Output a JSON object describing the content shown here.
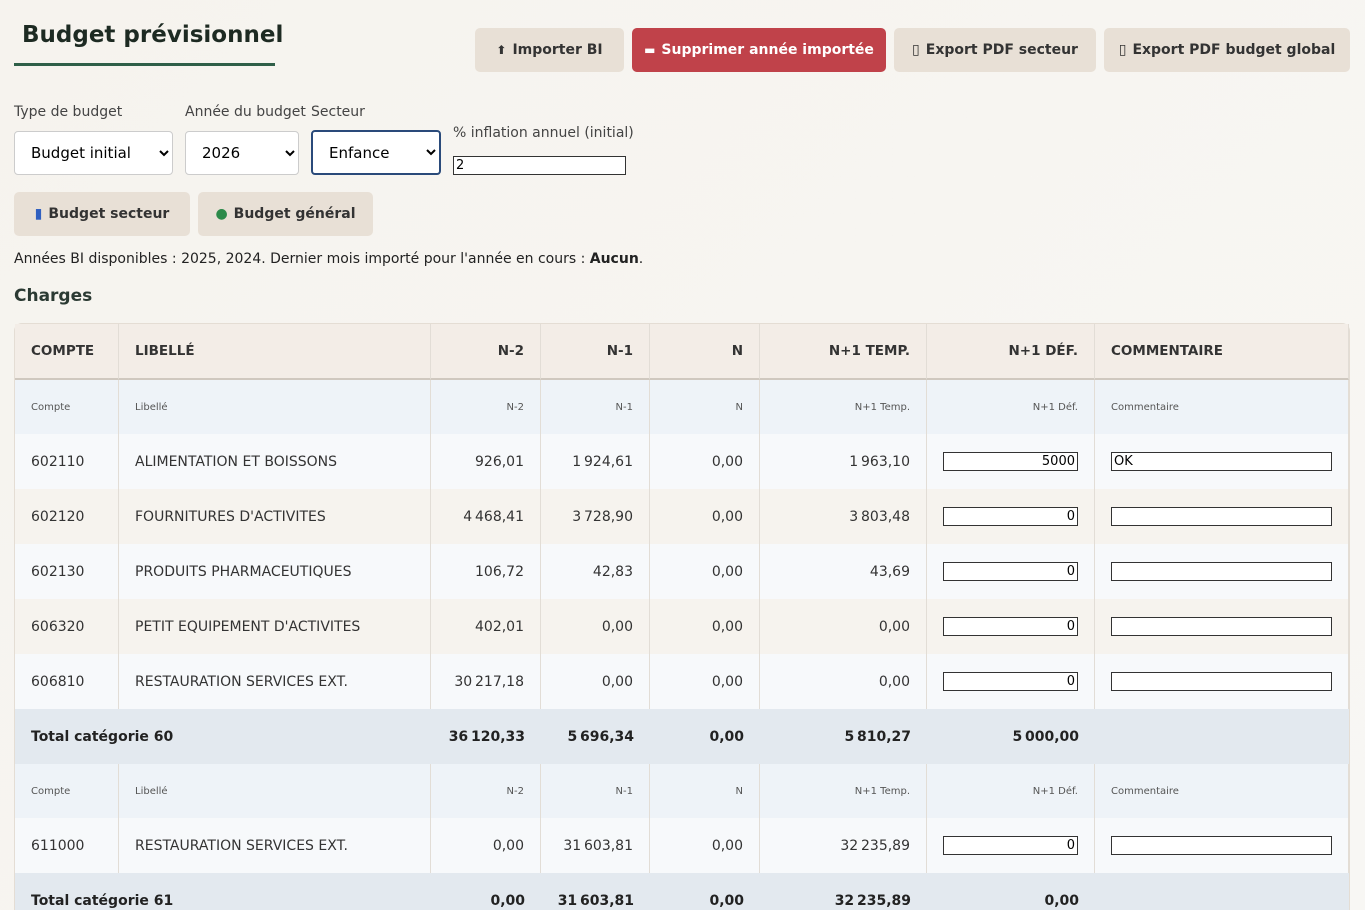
{
  "header": {
    "title": "Budget prévisionnel",
    "buttons": [
      "Importer BI",
      "Supprimer année importée",
      "Export PDF secteur",
      "Export PDF budget global"
    ]
  },
  "filters": [
    {
      "label": "Type de budget",
      "value": "Budget initial"
    },
    {
      "label": "Année du budget",
      "value": "2026"
    },
    {
      "label": "Secteur",
      "value": "Enfance"
    },
    {
      "label": "% inflation annuel (initial)",
      "value": "2"
    }
  ],
  "views": [
    "Budget secteur",
    "Budget général"
  ],
  "info": {
    "text": "Années BI disponibles : 2025, 2024. Dernier mois importé pour l'année en cours : ",
    "strong": "Aucun",
    "end": "."
  },
  "section": "Charges",
  "table": {
    "columns": [
      "COMPTE",
      "LIBELLÉ",
      "N-2",
      "N-1",
      "N",
      "N+1 TEMP.",
      "N+1 DÉF.",
      "COMMENTAIRE"
    ],
    "subheader": [
      "Compte",
      "Libellé",
      "N-2",
      "N-1",
      "N",
      "N+1 Temp.",
      "N+1 Déf.",
      "Commentaire"
    ],
    "groups": [
      {
        "rows": [
          {
            "compte": "602110",
            "libelle": "ALIMENTATION ET BOISSONS",
            "n2": "926,01",
            "n1": "1 924,61",
            "n": "0,00",
            "temp": "1 963,10",
            "def": "5000",
            "commentaire": "OK"
          },
          {
            "compte": "602120",
            "libelle": "FOURNITURES D'ACTIVITES",
            "n2": "4 468,41",
            "n1": "3 728,90",
            "n": "0,00",
            "temp": "3 803,48",
            "def": "0"
          },
          {
            "compte": "602130",
            "libelle": "PRODUITS PHARMACEUTIQUES",
            "n2": "106,72",
            "n1": "42,83",
            "n": "0,00",
            "temp": "43,69",
            "def": "0"
          },
          {
            "compte": "606320",
            "libelle": "PETIT EQUIPEMENT D'ACTIVITES",
            "n2": "402,01",
            "n1": "0,00",
            "n": "0,00",
            "temp": "0,00",
            "def": "0"
          },
          {
            "compte": "606810",
            "libelle": "RESTAURATION SERVICES EXT.",
            "n2": "30 217,18",
            "n1": "0,00",
            "n": "0,00",
            "temp": "0,00",
            "def": "0"
          }
        ],
        "total": {
          "label": "Total catégorie 60",
          "n2": "36 120,33",
          "n1": "5 696,34",
          "n": "0,00",
          "temp": "5 810,27",
          "def": "5 000,00"
        }
      },
      {
        "rows": [
          {
            "compte": "611000",
            "libelle": "RESTAURATION SERVICES EXT.",
            "n2": "0,00",
            "n1": "31 603,81",
            "n": "0,00",
            "temp": "32 235,89",
            "def": "0"
          }
        ],
        "total": {
          "label": "Total catégorie 61",
          "n2": "0,00",
          "n1": "31 603,81",
          "n": "0,00",
          "temp": "32 235,89",
          "def": "0,00"
        }
      }
    ]
  }
}
